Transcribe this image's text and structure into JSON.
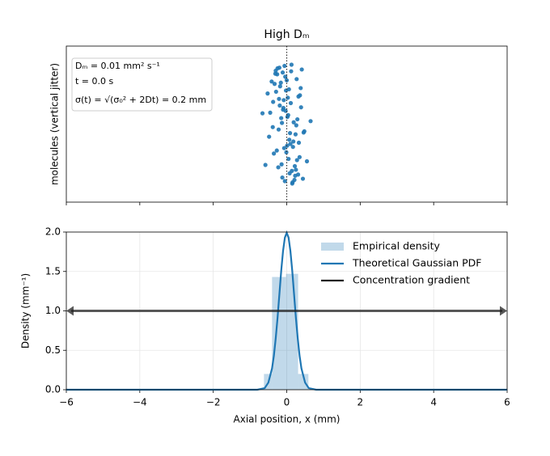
{
  "chart_data": [
    {
      "type": "scatter",
      "title": "High Dₘ",
      "ylabel": "molecules (vertical jitter)",
      "xlim": [
        -6,
        6
      ],
      "xticks": [
        -6,
        -4,
        -2,
        0,
        2,
        4,
        6
      ],
      "ylim": [
        -1.3,
        1.3
      ],
      "color": "#1f77b4",
      "vline": 0,
      "annotation": [
        "Dₘ = 0.01 mm² s⁻¹",
        "t = 0.0 s",
        "σ(t) = √(σ₀² + 2Dt) = 0.2 mm"
      ],
      "x": [
        -0.05,
        0.12,
        -0.21,
        0.33,
        0.02,
        -0.14,
        0.27,
        -0.38,
        0.08,
        -0.02,
        0.19,
        -0.27,
        0.41,
        -0.09,
        0.05,
        -0.45,
        0.15,
        -0.18,
        0.24,
        -0.31,
        0.01,
        0.36,
        -0.06,
        -0.23,
        0.11,
        0.48,
        -0.12,
        0.29,
        -0.52,
        0.07,
        -0.16,
        0.21,
        -0.03,
        0.38,
        -0.35,
        0.14,
        -0.08,
        0.26,
        -0.25,
        0.04,
        0.55,
        -0.41,
        0.17,
        -0.11,
        0.31,
        -0.19,
        0.09,
        -0.29,
        0.22,
        -0.01,
        0.65,
        -0.66,
        0.13,
        -0.22,
        0.35,
        -0.04,
        0.18,
        -0.33,
        0.03,
        0.44,
        -0.15,
        0.25,
        -0.48,
        0.06,
        -0.26,
        0.39,
        -0.07,
        0.16,
        -0.37,
        0.28,
        -0.13,
        0.1,
        -0.2,
        0.32,
        -0.58,
        0.0,
        0.23,
        -0.1,
        0.46,
        -0.3
      ],
      "values": [
        -0.95,
        0.88,
        0.42,
        -0.31,
        0.12,
        -0.67,
        0.75,
        -0.05,
        -0.82,
        0.56,
        0.03,
        -0.44,
        0.91,
        0.27,
        -0.58,
        0.19,
        -0.99,
        0.63,
        -0.17,
        0.84,
        -0.36,
        0.48,
        0.97,
        -0.72,
        0.35,
        -0.12,
        -0.89,
        0.08,
        0.51,
        -0.26,
        0.69,
        -0.93,
        0.22,
        0.6,
        -0.49,
        -0.78,
        0.4,
        -0.02,
        0.93,
        0.15,
        -0.62,
        0.71,
        -0.38,
        0.86,
        -0.84,
        0.31,
        -0.15,
        0.54,
        -0.7,
        -0.47,
        0.05,
        0.18,
        0.99,
        -0.09,
        -0.55,
        0.79,
        -0.29,
        0.67,
        0.44,
        -0.91,
        0.1,
        -0.76,
        -0.21,
        0.58,
        0.83,
        0.28,
        -0.4,
        -0.97,
        0.37,
        -0.6,
        0.02,
        -0.33,
        0.94,
        0.46,
        -0.68,
        0.73,
        -0.86,
        0.24,
        -0.14,
        0.89
      ]
    },
    {
      "type": "histogram",
      "xlabel": "Axial position, x (mm)",
      "ylabel": "Density (mm⁻¹)",
      "grid": true,
      "xlim": [
        -6,
        6
      ],
      "xticks": [
        {
          "value": -6,
          "label": "−6"
        },
        {
          "value": -4,
          "label": "−4"
        },
        {
          "value": -2,
          "label": "−2"
        },
        0,
        2,
        4,
        6
      ],
      "ylim": [
        0,
        2
      ],
      "yticks": [
        {
          "value": 0,
          "label": "0.0"
        },
        0.5,
        {
          "value": 1,
          "label": "1.0"
        },
        1.5,
        {
          "value": 2,
          "label": "2.0"
        }
      ],
      "series": [
        {
          "name": "Empirical density",
          "type": "bar",
          "color": "#1f77b4",
          "bins": [
            -0.62,
            -0.4,
            -0.02,
            0.31,
            0.59
          ],
          "values": [
            0.2,
            1.43,
            1.47,
            0.2
          ]
        },
        {
          "name": "Theoretical Gaussian PDF",
          "type": "line",
          "color": "#1f77b4",
          "x": [
            -6,
            -1,
            -0.8,
            -0.6,
            -0.5,
            -0.4,
            -0.35,
            -0.3,
            -0.25,
            -0.2,
            -0.15,
            -0.1,
            -0.05,
            0,
            0.05,
            0.1,
            0.15,
            0.2,
            0.25,
            0.3,
            0.35,
            0.4,
            0.5,
            0.6,
            0.8,
            1,
            6
          ],
          "values": [
            0,
            0,
            0,
            0.02,
            0.09,
            0.27,
            0.43,
            0.65,
            0.91,
            1.21,
            1.51,
            1.76,
            1.93,
            1.99,
            1.93,
            1.76,
            1.51,
            1.21,
            0.91,
            0.65,
            0.43,
            0.27,
            0.09,
            0.02,
            0,
            0,
            0
          ]
        },
        {
          "name": "Concentration gradient",
          "type": "arrow",
          "color": "#222222",
          "x": [
            -6,
            6
          ],
          "values": [
            1,
            1
          ]
        }
      ]
    }
  ]
}
